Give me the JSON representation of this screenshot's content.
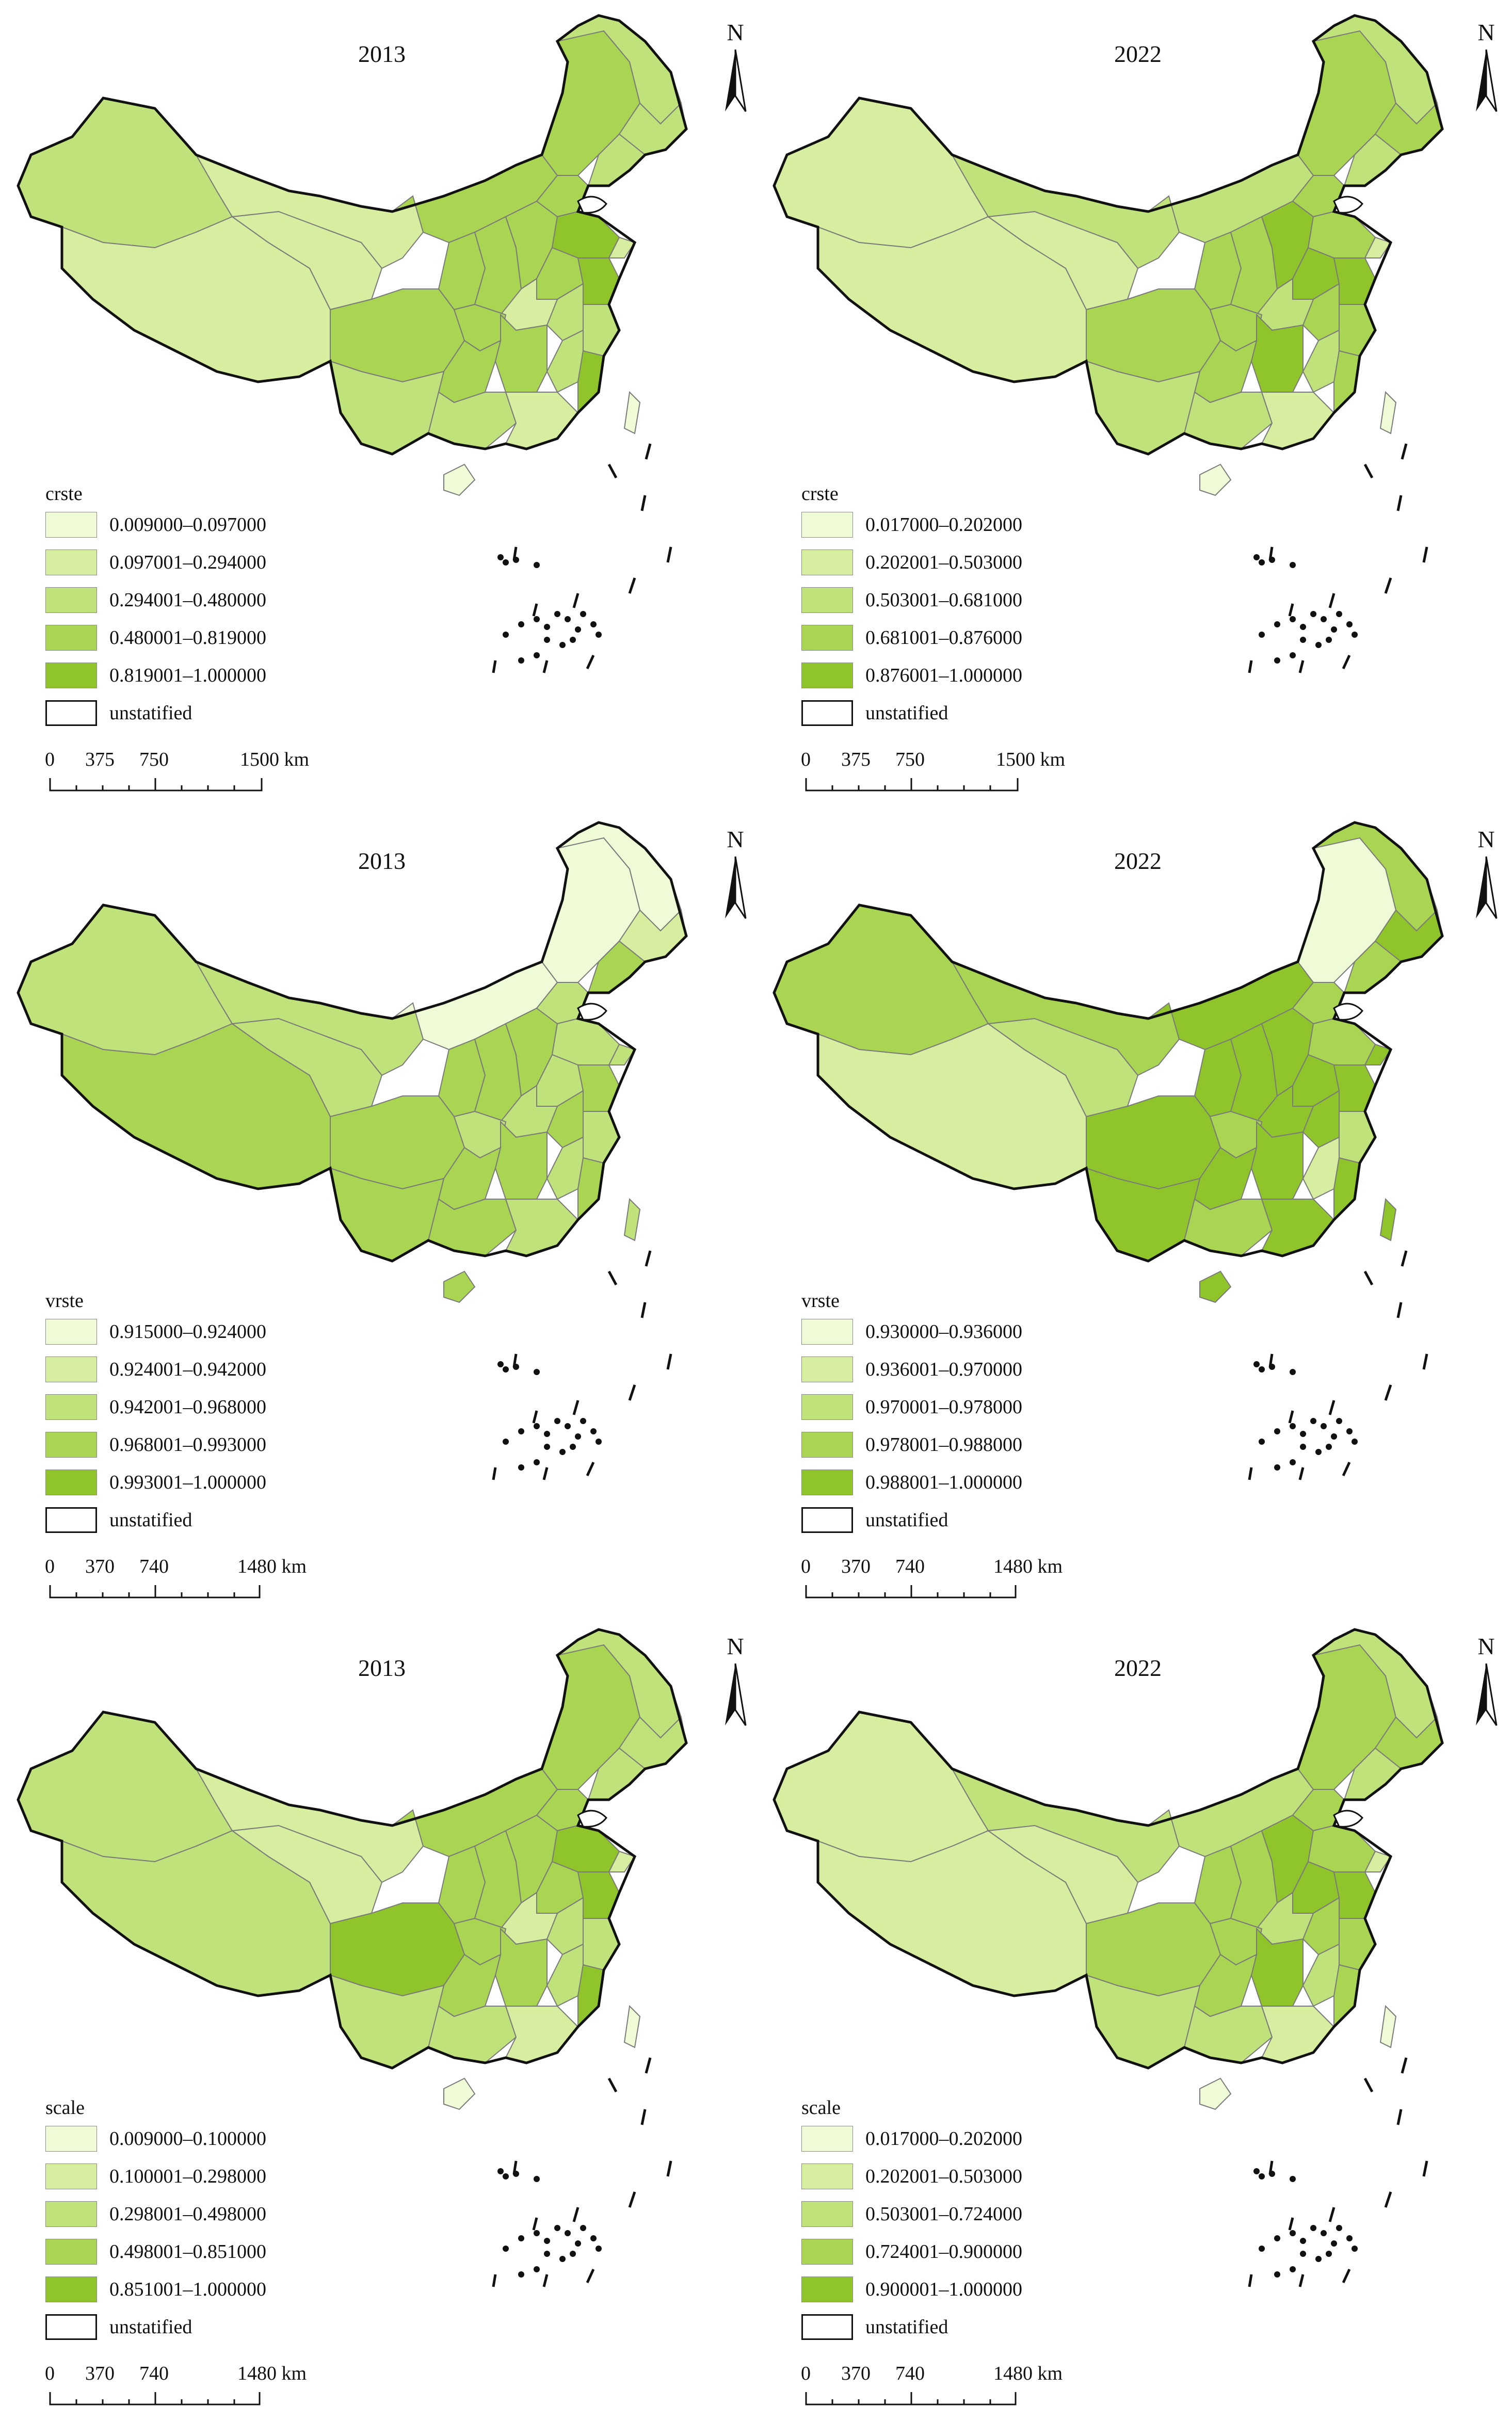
{
  "panels": [
    {
      "year": "2013",
      "north": "N",
      "legend_title": "crste",
      "classes": [
        "0.009000–0.097000",
        "0.097001–0.294000",
        "0.294001–0.480000",
        "0.480001–0.819000",
        "0.819001–1.000000"
      ],
      "unstatified": "unstatified",
      "scale": [
        "0",
        "375",
        "750",
        "1500 km"
      ]
    },
    {
      "year": "2022",
      "north": "N",
      "legend_title": "crste",
      "classes": [
        "0.017000–0.202000",
        "0.202001–0.503000",
        "0.503001–0.681000",
        "0.681001–0.876000",
        "0.876001–1.000000"
      ],
      "unstatified": "unstatified",
      "scale": [
        "0",
        "375",
        "750",
        "1500 km"
      ]
    },
    {
      "year": "2013",
      "north": "N",
      "legend_title": "vrste",
      "classes": [
        "0.915000–0.924000",
        "0.924001–0.942000",
        "0.942001–0.968000",
        "0.968001–0.993000",
        "0.993001–1.000000"
      ],
      "unstatified": "unstatified",
      "scale": [
        "0",
        "370",
        "740",
        "1480 km"
      ]
    },
    {
      "year": "2022",
      "north": "N",
      "legend_title": "vrste",
      "classes": [
        "0.930000–0.936000",
        "0.936001–0.970000",
        "0.970001–0.978000",
        "0.978001–0.988000",
        "0.988001–1.000000"
      ],
      "unstatified": "unstatified",
      "scale": [
        "0",
        "370",
        "740",
        "1480 km"
      ]
    },
    {
      "year": "2013",
      "north": "N",
      "legend_title": "scale",
      "classes": [
        "0.009000–0.100000",
        "0.100001–0.298000",
        "0.298001–0.498000",
        "0.498001–0.851000",
        "0.851001–1.000000"
      ],
      "unstatified": "unstatified",
      "scale": [
        "0",
        "370",
        "740",
        "1480 km"
      ]
    },
    {
      "year": "2022",
      "north": "N",
      "legend_title": "scale",
      "classes": [
        "0.017000–0.202000",
        "0.202001–0.503000",
        "0.503001–0.724000",
        "0.724001–0.900000",
        "0.900001–1.000000"
      ],
      "unstatified": "unstatified",
      "scale": [
        "0",
        "370",
        "740",
        "1480 km"
      ]
    }
  ],
  "colors": {
    "class_1": "#eefbd6",
    "class_2": "#d7eda0",
    "class_3": "#c0e27a",
    "class_4": "#a9d553",
    "class_5": "#8fc42a",
    "border": "#7a7a7a",
    "outline": "#111111"
  }
}
